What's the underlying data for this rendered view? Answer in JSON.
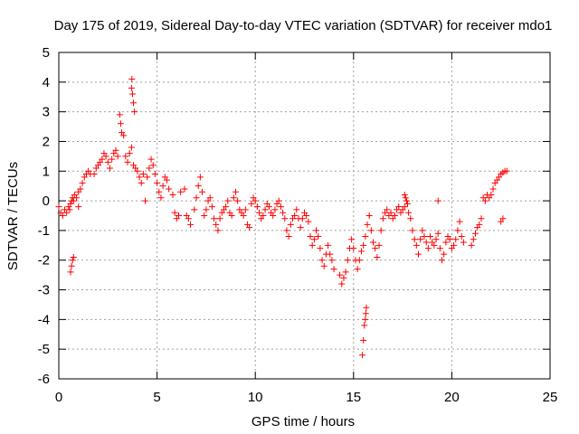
{
  "chart_data": {
    "type": "scatter",
    "title": "Day 175 of 2019, Sidereal Day-to-day VTEC variation (SDTVAR) for receiver mdo1",
    "xlabel": "GPS time / hours",
    "ylabel": "SDTVAR / TECUs",
    "xlim": [
      0,
      25
    ],
    "ylim": [
      -6,
      5
    ],
    "xticks": [
      "0",
      "5",
      "10",
      "15",
      "20",
      "25"
    ],
    "yticks": [
      "5",
      "4",
      "3",
      "2",
      "1",
      "0",
      "-1",
      "-2",
      "-3",
      "-4",
      "-5",
      "-6"
    ],
    "grid": true,
    "marker": "+",
    "color": "#ff0000",
    "series": [
      {
        "name": "SDTVAR",
        "points": [
          [
            0.0,
            -0.2
          ],
          [
            0.1,
            -0.4
          ],
          [
            0.2,
            -0.5
          ],
          [
            0.3,
            -0.3
          ],
          [
            0.4,
            -0.4
          ],
          [
            0.5,
            -0.2
          ],
          [
            0.55,
            -0.3
          ],
          [
            0.6,
            -0.1
          ],
          [
            0.65,
            0.0
          ],
          [
            0.7,
            0.1
          ],
          [
            0.75,
            0.0
          ],
          [
            0.6,
            -2.4
          ],
          [
            0.65,
            -2.2
          ],
          [
            0.7,
            -2.0
          ],
          [
            0.75,
            -1.9
          ],
          [
            0.8,
            0.2
          ],
          [
            0.9,
            0.1
          ],
          [
            1.0,
            -0.2
          ],
          [
            1.0,
            0.3
          ],
          [
            1.1,
            0.4
          ],
          [
            1.2,
            0.6
          ],
          [
            1.3,
            0.8
          ],
          [
            1.4,
            0.9
          ],
          [
            1.5,
            1.0
          ],
          [
            1.6,
            0.9
          ],
          [
            1.8,
            0.9
          ],
          [
            1.9,
            1.1
          ],
          [
            2.0,
            1.2
          ],
          [
            2.1,
            1.3
          ],
          [
            2.2,
            1.4
          ],
          [
            2.3,
            1.6
          ],
          [
            2.4,
            1.5
          ],
          [
            2.5,
            1.3
          ],
          [
            2.6,
            1.1
          ],
          [
            2.7,
            1.4
          ],
          [
            2.8,
            1.6
          ],
          [
            2.9,
            1.7
          ],
          [
            3.0,
            1.5
          ],
          [
            3.1,
            2.9
          ],
          [
            3.15,
            2.6
          ],
          [
            3.2,
            2.3
          ],
          [
            3.3,
            2.2
          ],
          [
            3.4,
            1.5
          ],
          [
            3.5,
            1.3
          ],
          [
            3.6,
            1.6
          ],
          [
            3.7,
            1.8
          ],
          [
            3.7,
            3.8
          ],
          [
            3.72,
            4.1
          ],
          [
            3.75,
            3.6
          ],
          [
            3.8,
            3.3
          ],
          [
            3.85,
            3.0
          ],
          [
            3.8,
            1.2
          ],
          [
            3.9,
            1.1
          ],
          [
            4.0,
            1.0
          ],
          [
            4.1,
            0.8
          ],
          [
            4.2,
            0.6
          ],
          [
            4.3,
            0.9
          ],
          [
            4.4,
            0.0
          ],
          [
            4.5,
            0.8
          ],
          [
            4.6,
            1.1
          ],
          [
            4.7,
            1.4
          ],
          [
            4.8,
            1.2
          ],
          [
            4.9,
            0.9
          ],
          [
            5.0,
            0.6
          ],
          [
            5.1,
            0.3
          ],
          [
            5.2,
            0.1
          ],
          [
            5.3,
            0.5
          ],
          [
            5.4,
            0.8
          ],
          [
            5.5,
            0.7
          ],
          [
            5.6,
            0.4
          ],
          [
            5.8,
            0.2
          ],
          [
            5.9,
            -0.4
          ],
          [
            6.0,
            -0.6
          ],
          [
            6.1,
            -0.5
          ],
          [
            6.2,
            0.3
          ],
          [
            6.4,
            0.4
          ],
          [
            6.5,
            -0.5
          ],
          [
            6.6,
            -0.6
          ],
          [
            6.7,
            -0.8
          ],
          [
            6.9,
            -0.3
          ],
          [
            7.0,
            0.1
          ],
          [
            7.1,
            0.5
          ],
          [
            7.2,
            0.8
          ],
          [
            7.3,
            0.3
          ],
          [
            7.4,
            -0.5
          ],
          [
            7.5,
            -0.3
          ],
          [
            7.6,
            0.0
          ],
          [
            7.7,
            0.1
          ],
          [
            7.8,
            -0.2
          ],
          [
            7.9,
            -0.6
          ],
          [
            8.0,
            -0.8
          ],
          [
            8.1,
            -1.0
          ],
          [
            8.2,
            -0.6
          ],
          [
            8.3,
            -0.4
          ],
          [
            8.4,
            -0.3
          ],
          [
            8.5,
            -0.2
          ],
          [
            8.6,
            0.0
          ],
          [
            8.7,
            -0.4
          ],
          [
            8.8,
            -0.5
          ],
          [
            8.9,
            0.1
          ],
          [
            9.0,
            0.3
          ],
          [
            9.1,
            0.0
          ],
          [
            9.2,
            -0.3
          ],
          [
            9.3,
            -0.4
          ],
          [
            9.4,
            -0.5
          ],
          [
            9.5,
            -0.3
          ],
          [
            9.6,
            -0.8
          ],
          [
            9.7,
            -0.9
          ],
          [
            9.8,
            -0.1
          ],
          [
            9.9,
            0.1
          ],
          [
            10.0,
            0.0
          ],
          [
            10.1,
            -0.2
          ],
          [
            10.2,
            -0.4
          ],
          [
            10.3,
            -0.6
          ],
          [
            10.4,
            -0.5
          ],
          [
            10.5,
            -0.3
          ],
          [
            10.6,
            -0.1
          ],
          [
            10.7,
            -0.2
          ],
          [
            10.8,
            -0.4
          ],
          [
            10.9,
            -0.5
          ],
          [
            11.0,
            -0.3
          ],
          [
            11.1,
            -0.1
          ],
          [
            11.2,
            0.0
          ],
          [
            11.3,
            -0.2
          ],
          [
            11.4,
            -0.4
          ],
          [
            11.5,
            -0.6
          ],
          [
            11.6,
            -1.0
          ],
          [
            11.7,
            -1.2
          ],
          [
            11.8,
            -0.8
          ],
          [
            11.9,
            -0.6
          ],
          [
            12.0,
            -0.5
          ],
          [
            12.1,
            -0.3
          ],
          [
            12.2,
            -0.6
          ],
          [
            12.3,
            -0.9
          ],
          [
            12.4,
            -0.6
          ],
          [
            12.5,
            -0.4
          ],
          [
            12.6,
            -0.5
          ],
          [
            12.7,
            -0.7
          ],
          [
            12.8,
            -1.2
          ],
          [
            12.9,
            -1.5
          ],
          [
            13.0,
            -1.3
          ],
          [
            13.1,
            -1.0
          ],
          [
            13.2,
            -1.2
          ],
          [
            13.3,
            -1.6
          ],
          [
            13.4,
            -2.0
          ],
          [
            13.5,
            -2.2
          ],
          [
            13.6,
            -1.8
          ],
          [
            13.7,
            -1.5
          ],
          [
            13.8,
            -1.8
          ],
          [
            13.9,
            -2.0
          ],
          [
            14.0,
            -2.3
          ],
          [
            14.3,
            -2.5
          ],
          [
            14.4,
            -2.8
          ],
          [
            14.5,
            -2.6
          ],
          [
            14.6,
            -2.4
          ],
          [
            14.7,
            -2.0
          ],
          [
            14.8,
            -1.6
          ],
          [
            14.9,
            -1.3
          ],
          [
            15.0,
            -1.6
          ],
          [
            15.1,
            -2.0
          ],
          [
            15.2,
            -2.3
          ],
          [
            15.3,
            -2.0
          ],
          [
            15.4,
            -1.7
          ],
          [
            15.45,
            -5.2
          ],
          [
            15.5,
            -4.7
          ],
          [
            15.55,
            -4.2
          ],
          [
            15.6,
            -4.0
          ],
          [
            15.62,
            -3.8
          ],
          [
            15.65,
            -3.6
          ],
          [
            15.5,
            -1.5
          ],
          [
            15.6,
            -1.2
          ],
          [
            15.7,
            -0.8
          ],
          [
            15.8,
            -0.5
          ],
          [
            15.9,
            -1.0
          ],
          [
            16.0,
            -1.4
          ],
          [
            16.1,
            -1.6
          ],
          [
            16.2,
            -1.9
          ],
          [
            16.3,
            -1.5
          ],
          [
            16.4,
            -1.0
          ],
          [
            16.5,
            -0.6
          ],
          [
            16.6,
            -0.4
          ],
          [
            16.7,
            -0.3
          ],
          [
            16.8,
            -0.5
          ],
          [
            16.9,
            -0.4
          ],
          [
            17.0,
            -0.6
          ],
          [
            17.1,
            -0.5
          ],
          [
            17.2,
            -0.3
          ],
          [
            17.3,
            -0.2
          ],
          [
            17.4,
            -0.4
          ],
          [
            17.5,
            -0.3
          ],
          [
            17.6,
            -0.2
          ],
          [
            17.6,
            0.2
          ],
          [
            17.65,
            0.1
          ],
          [
            17.7,
            0.0
          ],
          [
            17.75,
            -0.1
          ],
          [
            17.8,
            -0.4
          ],
          [
            17.9,
            -0.6
          ],
          [
            18.0,
            -1.0
          ],
          [
            18.1,
            -1.3
          ],
          [
            18.2,
            -1.5
          ],
          [
            18.3,
            -1.8
          ],
          [
            18.4,
            -1.3
          ],
          [
            18.5,
            -1.0
          ],
          [
            18.6,
            -1.2
          ],
          [
            18.7,
            -1.4
          ],
          [
            18.8,
            -1.6
          ],
          [
            18.9,
            -1.2
          ],
          [
            19.0,
            -1.4
          ],
          [
            19.1,
            -1.5
          ],
          [
            19.2,
            -1.3
          ],
          [
            19.3,
            -1.1
          ],
          [
            19.4,
            -1.6
          ],
          [
            19.5,
            -2.0
          ],
          [
            19.6,
            -1.8
          ],
          [
            19.7,
            -1.4
          ],
          [
            19.8,
            -1.2
          ],
          [
            19.9,
            -1.3
          ],
          [
            20.0,
            -1.6
          ],
          [
            20.1,
            -1.5
          ],
          [
            20.2,
            -1.3
          ],
          [
            20.3,
            -1.0
          ],
          [
            20.4,
            -0.7
          ],
          [
            20.5,
            -1.2
          ],
          [
            20.6,
            -1.4
          ],
          [
            19.3,
            0.0
          ],
          [
            21.0,
            -1.5
          ],
          [
            21.1,
            -1.3
          ],
          [
            21.2,
            -1.1
          ],
          [
            21.3,
            -0.9
          ],
          [
            21.4,
            -0.8
          ],
          [
            21.5,
            -0.6
          ],
          [
            21.6,
            0.1
          ],
          [
            21.7,
            0.0
          ],
          [
            21.8,
            0.2
          ],
          [
            21.9,
            0.1
          ],
          [
            22.0,
            0.2
          ],
          [
            22.1,
            0.4
          ],
          [
            22.2,
            0.6
          ],
          [
            22.3,
            0.7
          ],
          [
            22.4,
            0.8
          ],
          [
            22.5,
            0.9
          ],
          [
            22.6,
            0.95
          ],
          [
            22.7,
            1.0
          ],
          [
            22.8,
            1.0
          ],
          [
            22.6,
            -0.6
          ],
          [
            22.5,
            -0.7
          ]
        ]
      }
    ]
  }
}
